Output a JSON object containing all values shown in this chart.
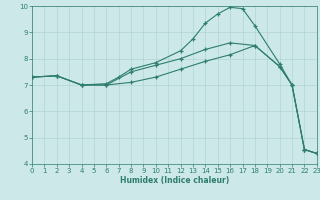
{
  "xlabel": "Humidex (Indice chaleur)",
  "xlim": [
    0,
    23
  ],
  "ylim": [
    4,
    10
  ],
  "xticks": [
    0,
    1,
    2,
    3,
    4,
    5,
    6,
    7,
    8,
    9,
    10,
    11,
    12,
    13,
    14,
    15,
    16,
    17,
    18,
    19,
    20,
    21,
    22,
    23
  ],
  "yticks": [
    4,
    5,
    6,
    7,
    8,
    9,
    10
  ],
  "bg_color": "#cce8e8",
  "line_color": "#2e7d6e",
  "grid_color": "#b0d4d4",
  "line1_x": [
    0,
    2,
    4,
    6,
    7,
    8,
    10,
    12,
    13,
    14,
    15,
    16,
    17,
    18,
    20,
    21,
    22,
    23
  ],
  "line1_y": [
    7.3,
    7.35,
    7.0,
    7.05,
    7.3,
    7.6,
    7.85,
    8.3,
    8.75,
    9.35,
    9.7,
    9.95,
    9.9,
    9.25,
    7.8,
    7.0,
    4.55,
    4.4
  ],
  "line2_x": [
    0,
    2,
    4,
    6,
    8,
    10,
    12,
    14,
    16,
    18,
    20,
    21,
    22,
    23
  ],
  "line2_y": [
    7.3,
    7.35,
    7.0,
    7.0,
    7.5,
    7.75,
    8.0,
    8.35,
    8.6,
    8.5,
    7.7,
    7.0,
    4.55,
    4.4
  ],
  "line3_x": [
    0,
    2,
    4,
    6,
    8,
    10,
    12,
    14,
    16,
    18,
    20,
    21,
    22,
    23
  ],
  "line3_y": [
    7.3,
    7.35,
    7.0,
    7.0,
    7.1,
    7.3,
    7.6,
    7.9,
    8.15,
    8.5,
    7.7,
    7.0,
    4.55,
    4.4
  ]
}
